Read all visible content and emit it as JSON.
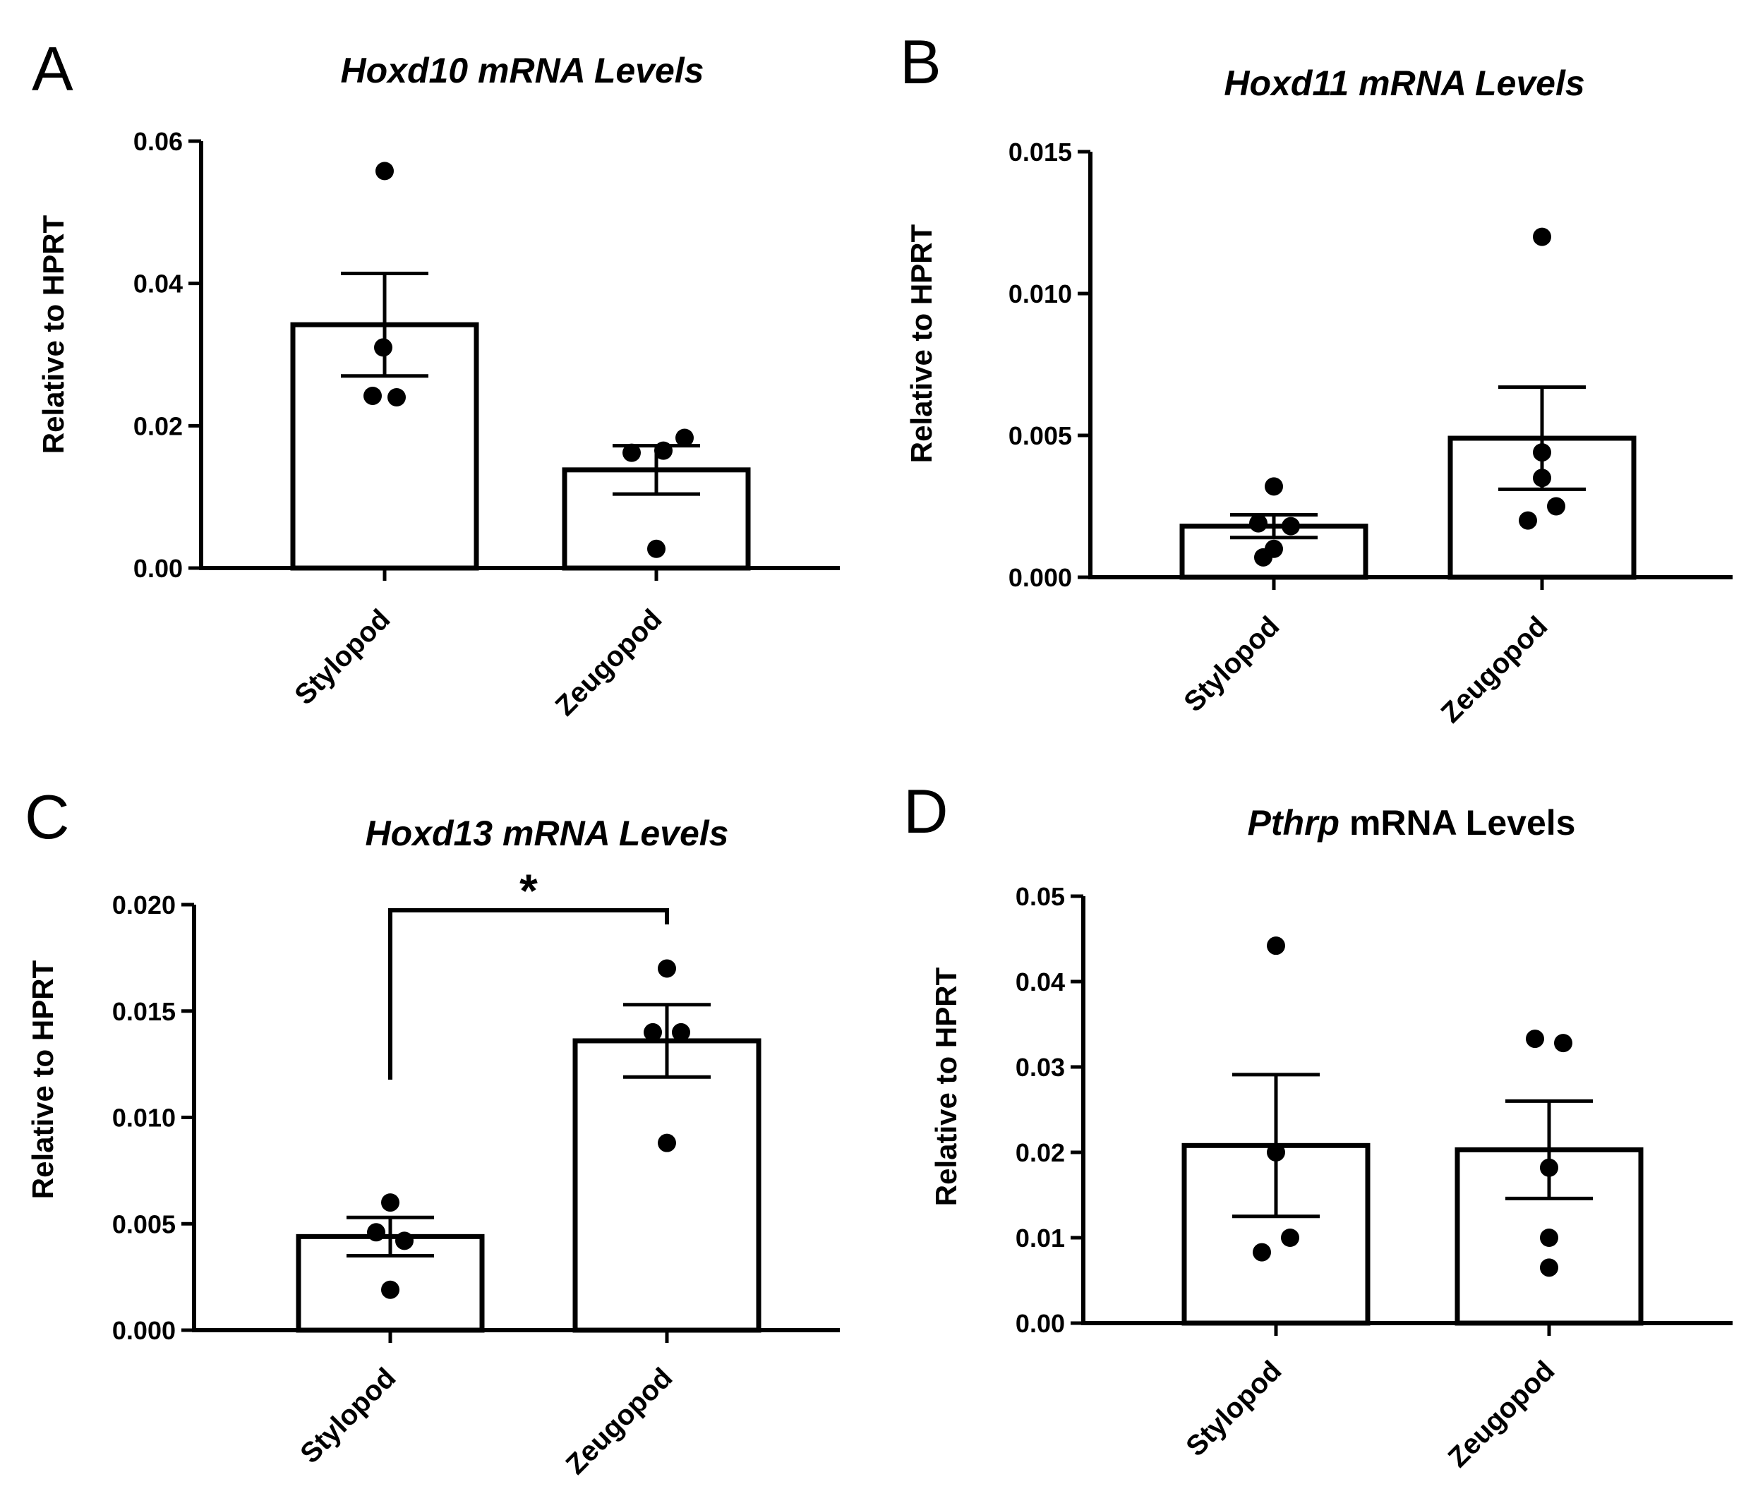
{
  "chart_data": [
    {
      "panel": "A",
      "type": "bar",
      "title_italic": "Hoxd10 mRNA Levels",
      "title_rest": "",
      "ylabel": "Relative to HPRT",
      "ylim": [
        0,
        0.06
      ],
      "yticks": [
        "0.00",
        "0.02",
        "0.04",
        "0.06"
      ],
      "categories": [
        "Stylopod",
        "Zeugopod"
      ],
      "means": [
        0.0342,
        0.0138
      ],
      "sem": [
        0.0072,
        0.0034
      ],
      "points": [
        [
          0.0558,
          0.031,
          0.0242,
          0.024
        ],
        [
          0.0183,
          0.0165,
          0.0162,
          0.0027
        ]
      ],
      "significance": null
    },
    {
      "panel": "B",
      "type": "bar",
      "title_italic": "Hoxd11 mRNA Levels",
      "title_rest": "",
      "ylabel": "Relative to HPRT",
      "ylim": [
        0,
        0.015
      ],
      "yticks": [
        "0.000",
        "0.005",
        "0.010",
        "0.015"
      ],
      "categories": [
        "Stylopod",
        "Zeugopod"
      ],
      "means": [
        0.0018,
        0.0049
      ],
      "sem": [
        0.0004,
        0.0018
      ],
      "points": [
        [
          0.0032,
          0.0019,
          0.0018,
          0.001,
          0.0007
        ],
        [
          0.012,
          0.0044,
          0.0035,
          0.0025,
          0.002
        ]
      ],
      "significance": null
    },
    {
      "panel": "C",
      "type": "bar",
      "title_italic": "Hoxd13 mRNA Levels",
      "title_rest": "",
      "ylabel": "Relative to HPRT",
      "ylim": [
        0,
        0.02
      ],
      "yticks": [
        "0.000",
        "0.005",
        "0.010",
        "0.015",
        "0.020"
      ],
      "categories": [
        "Stylopod",
        "Zeugopod"
      ],
      "means": [
        0.0044,
        0.0136
      ],
      "sem": [
        0.0009,
        0.0017
      ],
      "points": [
        [
          0.006,
          0.0046,
          0.0042,
          0.0019
        ],
        [
          0.017,
          0.014,
          0.014,
          0.0088
        ]
      ],
      "significance": {
        "label": "*",
        "between": [
          0,
          1
        ]
      }
    },
    {
      "panel": "D",
      "type": "bar",
      "title_italic": "Pthrp",
      "title_rest": " mRNA Levels",
      "ylabel": "Relative to HPRT",
      "ylim": [
        0,
        0.05
      ],
      "yticks": [
        "0.00",
        "0.01",
        "0.02",
        "0.03",
        "0.04",
        "0.05"
      ],
      "categories": [
        "Stylopod",
        "Zeugopod"
      ],
      "means": [
        0.0208,
        0.0203
      ],
      "sem": [
        0.0083,
        0.0057
      ],
      "points": [
        [
          0.0442,
          0.02,
          0.01,
          0.0083
        ],
        [
          0.0333,
          0.0328,
          0.0182,
          0.01,
          0.0065
        ]
      ],
      "significance": null
    }
  ]
}
